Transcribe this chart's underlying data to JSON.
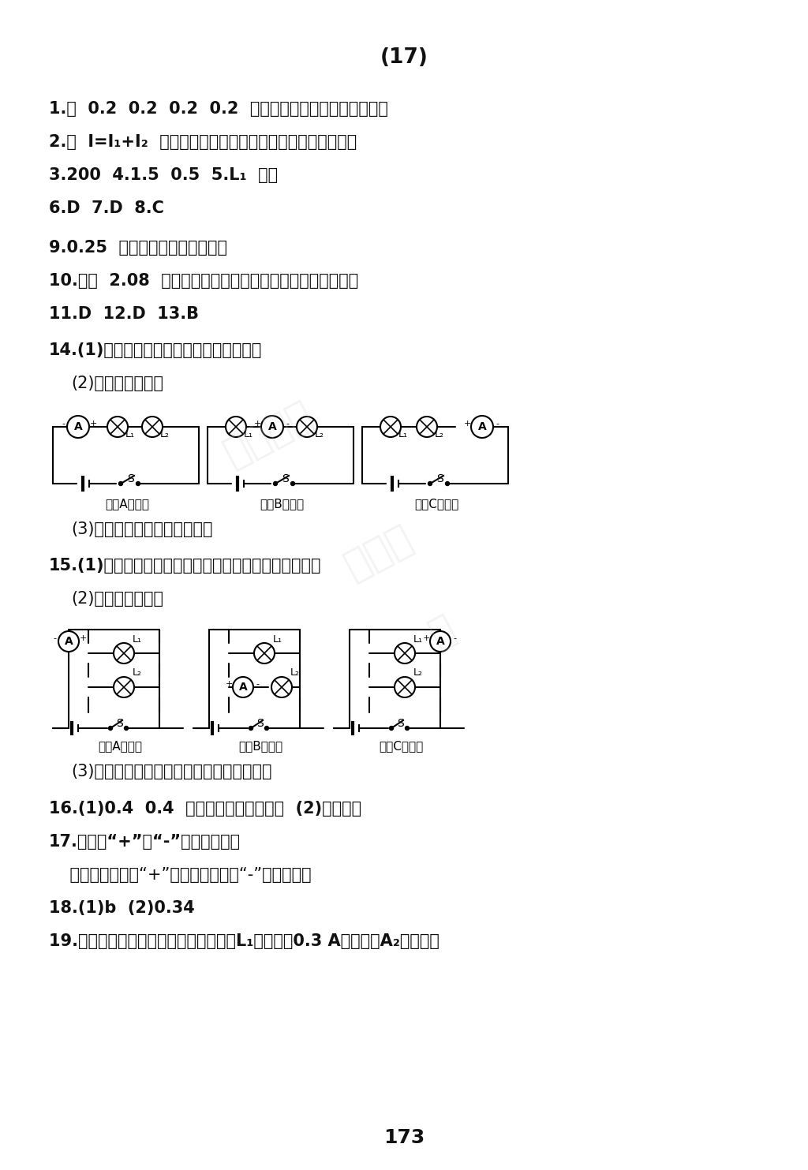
{
  "title": "(17)",
  "page_number": "173",
  "bg_color": "#ffffff",
  "text_color": "#111111",
  "lines_top": [
    [
      true,
      "1.串  0.2  0.2  0.2  0.2  在串联电路中各处的电流都相等"
    ],
    [
      true,
      "2.并  I=I₁+I₂  在并联电路中，干路电流等于各支路电流之和"
    ],
    [
      true,
      "3.200  4.1.5  0.5  5.L₁  断路"
    ],
    [
      true,
      "6.D  7.D  8.C"
    ],
    [
      false,
      ""
    ],
    [
      true,
      "9.0.25  串联电路中各处电流相等"
    ],
    [
      true,
      "10.可以  2.08  并联电路中，干路中电流等于各支路电流之和"
    ],
    [
      true,
      "11.D  12.D  13.B"
    ]
  ],
  "line14a": "14.(1)猜想：串联电路中各点的电流相等。",
  "line14b": "(2)答图如图所示：",
  "line14c": "(3)串联电路中各点的电流相等",
  "line15a": "15.(1)猜想：并联电路中干路电流等于各支路电流之和。",
  "line15b": "(2)答图如图所示：",
  "line15c": "(3)并联电路中干路电流等于各支路电流之和",
  "line16": "16.(1)0.4  0.4  串联电路电流处处相等  (2)量程不同",
  "line17a": "17.电流表“+”、“-”接线柱接反了",
  "line17b": "    使电流从电流表“+”接线柱流入，从“-”接线柱流出",
  "line18": "18.(1)b  (2)0.34",
  "line19": "19.串联电路中电流处处相等，所以通过L₁的电流是0.3 A，电流表A₂的示数是",
  "label_meas_a": "测量A点电流",
  "label_meas_b": "测量B点电流",
  "label_meas_c": "测量C点电流",
  "label_L1": "L₁",
  "label_L2": "L₂",
  "label_S": "S",
  "label_A": "A",
  "plus": "+",
  "minus": "-"
}
